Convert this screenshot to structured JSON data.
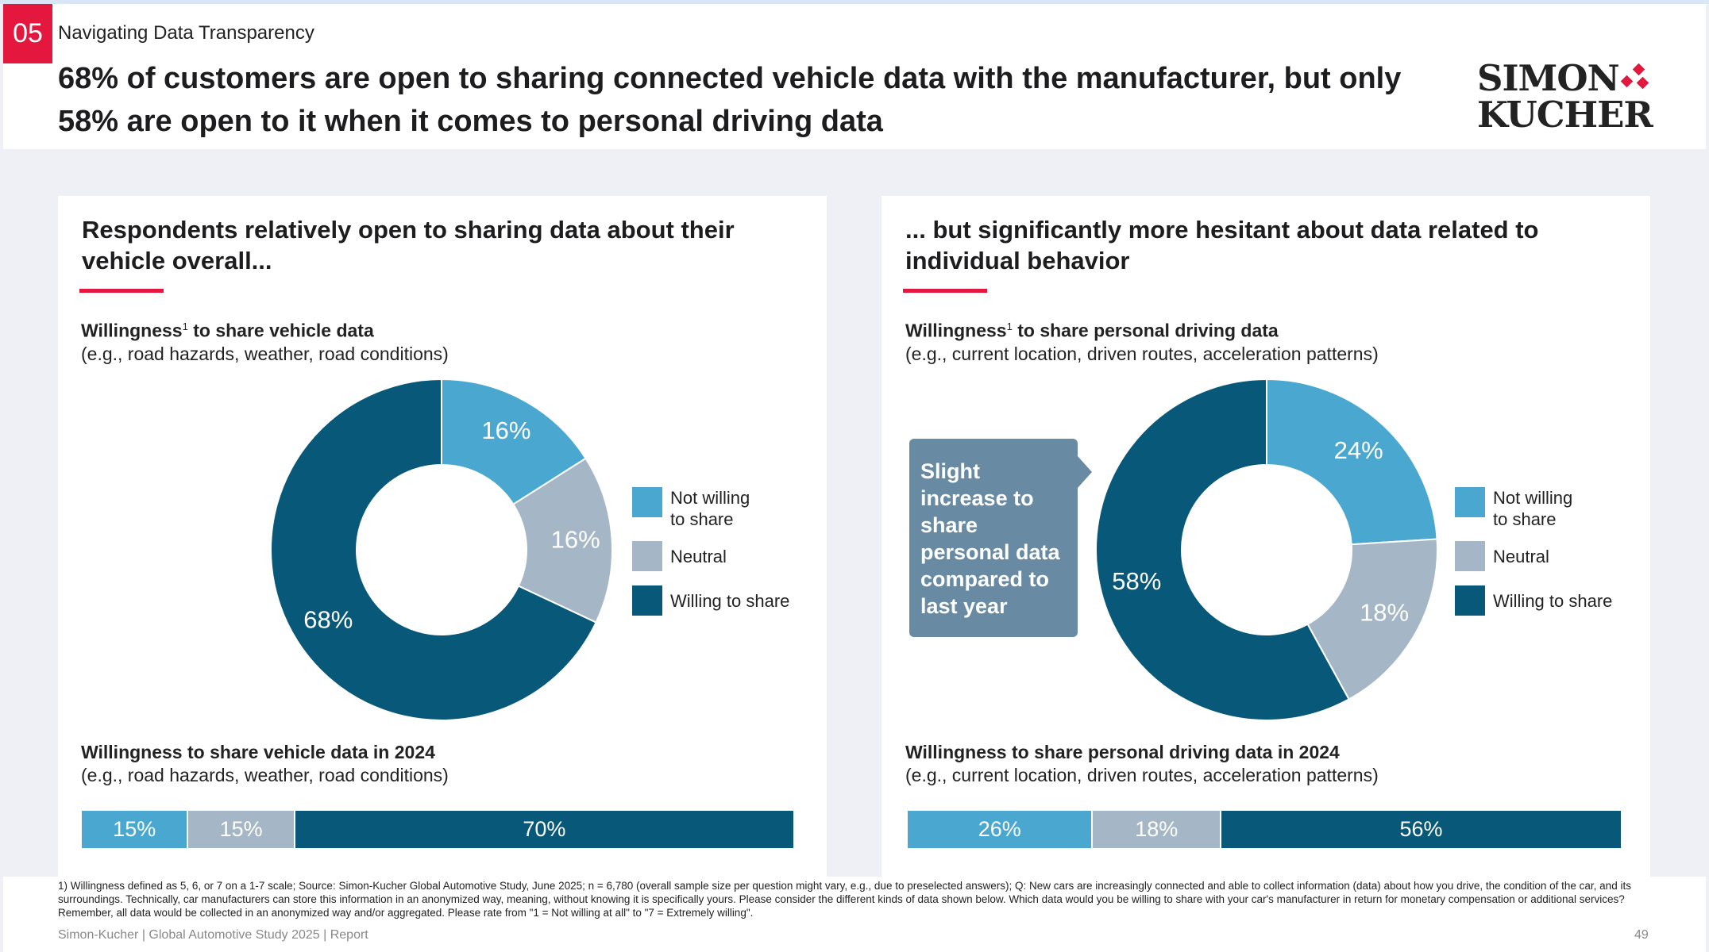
{
  "header": {
    "section_number": "05",
    "section_title": "Navigating Data Transparency",
    "headline": "68% of customers are open to sharing connected vehicle data with the manufacturer, but only 58% are open to it when it comes to personal driving data",
    "logo_text": [
      "SIMON",
      "KUCHER"
    ]
  },
  "colors": {
    "not_willing": "#4aa8d0",
    "neutral": "#a5b7c6",
    "willing": "#08587a",
    "accent": "#e4173e"
  },
  "legend": [
    "Not willing to share",
    "Neutral",
    "Willing to share"
  ],
  "legend_lines": [
    [
      "Not willing",
      "to share"
    ],
    [
      "Neutral"
    ],
    [
      "Willing to share"
    ]
  ],
  "chart_data": [
    {
      "type": "pie",
      "title": "Respondents relatively open to sharing data about their vehicle overall...",
      "subtitle_bold": "Willingness",
      "subtitle_sup": "1",
      "subtitle_rest": " to share vehicle data",
      "subtitle_note": "(e.g., road hazards, weather, road conditions)",
      "categories": [
        "Not willing to share",
        "Neutral",
        "Willing to share"
      ],
      "values": [
        16,
        16,
        68
      ],
      "labels": [
        "16%",
        "16%",
        "68%"
      ],
      "unit": "%",
      "legend_position": "right"
    },
    {
      "type": "bar",
      "orientation": "horizontal-stacked",
      "title": "Willingness to share vehicle data in 2024",
      "subtitle_note": "(e.g., road hazards, weather, road conditions)",
      "categories": [
        "Not willing to share",
        "Neutral",
        "Willing to share"
      ],
      "values": [
        15,
        15,
        70
      ],
      "labels": [
        "15%",
        "15%",
        "70%"
      ]
    },
    {
      "type": "pie",
      "title": "... but significantly more hesitant about data related to individual behavior",
      "subtitle_bold": "Willingness",
      "subtitle_sup": "1",
      "subtitle_rest": " to share personal driving data",
      "subtitle_note": "(e.g., current location, driven routes, acceleration patterns)",
      "categories": [
        "Not willing to share",
        "Neutral",
        "Willing to share"
      ],
      "values": [
        24,
        18,
        58
      ],
      "labels": [
        "24%",
        "18%",
        "58%"
      ],
      "unit": "%",
      "legend_position": "right",
      "annotation": "Slight increase to share personal data compared to last year"
    },
    {
      "type": "bar",
      "orientation": "horizontal-stacked",
      "title": "Willingness to share personal driving data in 2024",
      "subtitle_note": "(e.g., current location, driven routes, acceleration patterns)",
      "categories": [
        "Not willing to share",
        "Neutral",
        "Willing to share"
      ],
      "values": [
        26,
        18,
        56
      ],
      "labels": [
        "26%",
        "18%",
        "56%"
      ]
    }
  ],
  "footnote": "1) Willingness defined as 5, 6, or 7 on a 1-7 scale; Source: Simon-Kucher Global Automotive Study, June 2025; n = 6,780 (overall sample size per question might vary, e.g., due to preselected answers); Q: New cars are increasingly connected and able to collect information (data) about how you drive, the condition of the car, and its surroundings. Technically, car manufacturers can store this information in an anonymized way, meaning, without knowing it is specifically yours. Please consider the different kinds of data shown below. Which data would you be willing to share with your car's manufacturer in return for monetary compensation or additional services? Remember, all data would be collected in an anonymized way and/or aggregated. Please rate from \"1 = Not willing at all\" to \"7 = Extremely willing\".",
  "footer": "Simon-Kucher | Global Automotive Study 2025 | Report",
  "page_number": "49"
}
